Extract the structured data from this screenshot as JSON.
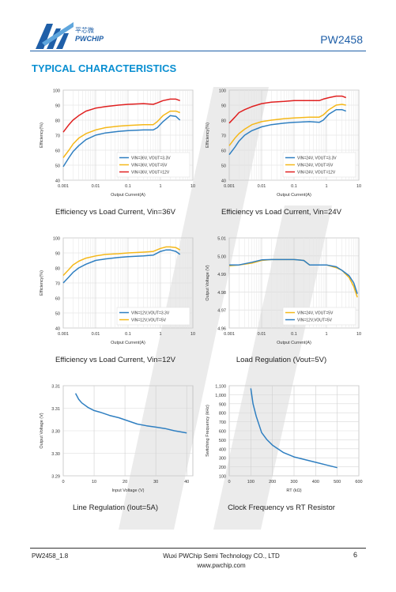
{
  "header": {
    "logo_cn": "平芯微",
    "logo_en": "PWCHIP",
    "part_number": "PW2458"
  },
  "section_title": "TYPICAL CHARACTERISTICS",
  "colors": {
    "blue": "#2f7fc1",
    "yellow": "#f5b819",
    "red": "#e02020",
    "accent": "#1f5fa8",
    "title": "#0a8fd1"
  },
  "charts": [
    {
      "id": "c1",
      "caption": "Efficiency vs Load Current, Vin=36V",
      "chart_data": {
        "type": "line",
        "xscale": "log",
        "xlim": [
          0.001,
          10
        ],
        "ylim": [
          40,
          100
        ],
        "xticks": [
          0.001,
          0.01,
          0.1,
          1,
          10
        ],
        "xtick_labels": [
          "0.001",
          "0.01",
          "0.1",
          "1",
          "10"
        ],
        "yticks": [
          40,
          50,
          60,
          70,
          80,
          90,
          100
        ],
        "ytick_labels": [
          "40",
          "50",
          "60",
          "70",
          "80",
          "90",
          "100"
        ],
        "xlabel": "Output Current(A)",
        "ylabel": "Efficiency(%)",
        "legend_position": "bottom-right",
        "series": [
          {
            "name": "VIN=36V, VOUT=3.3V",
            "color": "#2f7fc1",
            "x": [
              0.001,
              0.0015,
              0.002,
              0.003,
              0.005,
              0.01,
              0.02,
              0.05,
              0.1,
              0.3,
              0.6,
              0.8,
              1.2,
              2,
              3,
              4
            ],
            "y": [
              49,
              55,
              59,
              63,
              67,
              70,
              71.5,
              72.5,
              73,
              73.5,
              73.5,
              75,
              79,
              83,
              82.5,
              80
            ]
          },
          {
            "name": "VIN=36V, VOUT=5V",
            "color": "#f5b819",
            "x": [
              0.001,
              0.0015,
              0.002,
              0.003,
              0.005,
              0.01,
              0.02,
              0.05,
              0.1,
              0.3,
              0.6,
              0.8,
              1.2,
              2,
              3,
              4
            ],
            "y": [
              55,
              60,
              64,
              68,
              71,
              73.5,
              75,
              76,
              76.5,
              77,
              77,
              79,
              83,
              86,
              86,
              85
            ]
          },
          {
            "name": "VIN=36V, VOUT=12V",
            "color": "#e02020",
            "x": [
              0.001,
              0.0015,
              0.002,
              0.003,
              0.005,
              0.01,
              0.02,
              0.05,
              0.1,
              0.3,
              0.6,
              0.8,
              1.2,
              2,
              3,
              4
            ],
            "y": [
              72,
              77,
              80,
              83,
              86,
              88,
              89,
              90,
              90.5,
              91,
              90.5,
              91.5,
              93,
              94,
              94,
              93
            ]
          }
        ]
      }
    },
    {
      "id": "c2",
      "caption": "Efficiency vs Load Current, Vin=24V",
      "chart_data": {
        "type": "line",
        "xscale": "log",
        "xlim": [
          0.001,
          10
        ],
        "ylim": [
          40,
          100
        ],
        "xticks": [
          0.001,
          0.01,
          0.1,
          1,
          10
        ],
        "xtick_labels": [
          "0.001",
          "0.01",
          "0.1",
          "1",
          "10"
        ],
        "yticks": [
          40,
          50,
          60,
          70,
          80,
          90,
          100
        ],
        "ytick_labels": [
          "40",
          "50",
          "60",
          "70",
          "80",
          "90",
          "100"
        ],
        "xlabel": "Output Current(A)",
        "ylabel": "Efficiency(%)",
        "legend_position": "bottom-right",
        "series": [
          {
            "name": "VIN=24V, VOUT=3.3V",
            "color": "#2f7fc1",
            "x": [
              0.001,
              0.0015,
              0.002,
              0.003,
              0.005,
              0.01,
              0.02,
              0.05,
              0.1,
              0.3,
              0.6,
              0.8,
              1.2,
              2,
              3,
              4
            ],
            "y": [
              57,
              62,
              66,
              70,
              73,
              75.5,
              77,
              78,
              78.5,
              79,
              78.5,
              80,
              84,
              87,
              87,
              86
            ]
          },
          {
            "name": "VIN=24V, VOUT=5V",
            "color": "#f5b819",
            "x": [
              0.001,
              0.0015,
              0.002,
              0.003,
              0.005,
              0.01,
              0.02,
              0.05,
              0.1,
              0.3,
              0.6,
              0.8,
              1.2,
              2,
              3,
              4
            ],
            "y": [
              63,
              68,
              71,
              74,
              77,
              79,
              80,
              81,
              81.5,
              82,
              82,
              83.5,
              87,
              90,
              90.5,
              90
            ]
          },
          {
            "name": "VIN=24V, VOUT=12V",
            "color": "#e02020",
            "x": [
              0.001,
              0.0015,
              0.002,
              0.003,
              0.005,
              0.01,
              0.02,
              0.05,
              0.1,
              0.3,
              0.6,
              0.8,
              1.2,
              2,
              3,
              4
            ],
            "y": [
              78,
              82,
              85,
              87,
              89,
              91,
              92,
              92.5,
              93,
              93,
              93,
              94,
              95,
              96,
              96,
              95
            ]
          }
        ]
      }
    },
    {
      "id": "c3",
      "caption": "Efficiency vs Load Current, Vin=12V",
      "chart_data": {
        "type": "line",
        "xscale": "log",
        "xlim": [
          0.001,
          10
        ],
        "ylim": [
          40,
          100
        ],
        "xticks": [
          0.001,
          0.01,
          0.1,
          1,
          10
        ],
        "xtick_labels": [
          "0.001",
          "0.01",
          "0.1",
          "1",
          "10"
        ],
        "yticks": [
          40,
          50,
          60,
          70,
          80,
          90,
          100
        ],
        "ytick_labels": [
          "40",
          "50",
          "60",
          "70",
          "80",
          "90",
          "100"
        ],
        "xlabel": "Output Current(A)",
        "ylabel": "Efficiency(%)",
        "legend_position": "bottom-right",
        "series": [
          {
            "name": "VIN=12V,VOUT=3.3V",
            "color": "#2f7fc1",
            "x": [
              0.001,
              0.0015,
              0.002,
              0.003,
              0.005,
              0.01,
              0.02,
              0.05,
              0.1,
              0.3,
              0.6,
              1,
              1.5,
              2,
              3,
              4
            ],
            "y": [
              70,
              74,
              77,
              80,
              82.5,
              85,
              86,
              87,
              87.5,
              88,
              88.5,
              91,
              92,
              92,
              91,
              89
            ]
          },
          {
            "name": "VIN=12V,VOUT=5V",
            "color": "#f5b819",
            "x": [
              0.001,
              0.0015,
              0.002,
              0.003,
              0.005,
              0.01,
              0.02,
              0.05,
              0.1,
              0.3,
              0.6,
              1,
              1.5,
              2,
              3,
              4
            ],
            "y": [
              75,
              79,
              82,
              84.5,
              86.5,
              88,
              89,
              89.5,
              90,
              90.5,
              91,
              93,
              94,
              94,
              93.5,
              92
            ]
          }
        ]
      }
    },
    {
      "id": "c4",
      "caption": "Load Regulation (Vout=5V)",
      "chart_data": {
        "type": "line",
        "xscale": "log",
        "xlim": [
          0.001,
          10
        ],
        "ylim": [
          4.96,
          5.01
        ],
        "xticks": [
          0.001,
          0.01,
          0.1,
          1,
          10
        ],
        "xtick_labels": [
          "0.001",
          "0.01",
          "0.1",
          "1",
          "10"
        ],
        "yticks": [
          4.96,
          4.97,
          4.98,
          4.99,
          5.0,
          5.01
        ],
        "ytick_labels": [
          "4.96",
          "4.97",
          "4.98",
          "4.99",
          "5.00",
          "5.01"
        ],
        "xlabel": "Output Current(A)",
        "ylabel": "Output  Voltage (V)",
        "legend_position": "bottom-right",
        "series": [
          {
            "name": "VIN=24V, VOUT=5V",
            "color": "#f5b819",
            "x": [
              0.001,
              0.002,
              0.005,
              0.01,
              0.02,
              0.05,
              0.1,
              0.2,
              0.3,
              0.5,
              1,
              2,
              3,
              5,
              7,
              9
            ],
            "y": [
              4.9945,
              4.995,
              4.996,
              4.9975,
              4.998,
              4.998,
              4.998,
              4.9975,
              4.995,
              4.995,
              4.995,
              4.9935,
              4.992,
              4.988,
              4.983,
              4.977
            ]
          },
          {
            "name": "VIN=12V,VOUT=5V",
            "color": "#2f7fc1",
            "x": [
              0.001,
              0.002,
              0.005,
              0.01,
              0.02,
              0.05,
              0.1,
              0.2,
              0.3,
              0.5,
              1,
              2,
              3,
              5,
              7,
              9
            ],
            "y": [
              4.995,
              4.995,
              4.9965,
              4.9978,
              4.998,
              4.998,
              4.998,
              4.9975,
              4.995,
              4.995,
              4.995,
              4.994,
              4.992,
              4.989,
              4.985,
              4.979
            ]
          }
        ]
      }
    },
    {
      "id": "c5",
      "caption": "Line Regulation (Iout=5A)",
      "chart_data": {
        "type": "line",
        "xscale": "linear",
        "xlim": [
          0,
          42
        ],
        "ylim": [
          3.29,
          3.31
        ],
        "xticks": [
          0,
          10,
          20,
          30,
          40
        ],
        "xtick_labels": [
          "0",
          "10",
          "20",
          "30",
          "40"
        ],
        "yticks": [
          3.29,
          3.295,
          3.3,
          3.305,
          3.31
        ],
        "ytick_labels": [
          "3.29",
          "3.30",
          "3.30",
          "3.31",
          "3.31"
        ],
        "xlabel": "Input Voltage (V)",
        "ylabel": "Output Voltage (V)",
        "legend_position": "none",
        "series": [
          {
            "name": "",
            "color": "#2f7fc1",
            "x": [
              4,
              5,
              6,
              8,
              10,
              12,
              15,
              18,
              21,
              24,
              27,
              30,
              33,
              36,
              40
            ],
            "y": [
              3.3083,
              3.307,
              3.3062,
              3.3052,
              3.3045,
              3.3041,
              3.3034,
              3.3029,
              3.3022,
              3.3015,
              3.3011,
              3.3008,
              3.3005,
              3.3,
              3.2995
            ]
          }
        ]
      }
    },
    {
      "id": "c6",
      "caption": "Clock Frequency vs RT Resistor",
      "chart_data": {
        "type": "line",
        "xscale": "linear",
        "xlim": [
          0,
          600
        ],
        "ylim": [
          100,
          1100
        ],
        "xticks": [
          0,
          100,
          200,
          300,
          400,
          500,
          600
        ],
        "xtick_labels": [
          "0",
          "100",
          "200",
          "300",
          "400",
          "500",
          "600"
        ],
        "yticks": [
          100,
          200,
          300,
          400,
          500,
          600,
          700,
          800,
          900,
          1000,
          1100
        ],
        "ytick_labels": [
          "100",
          "200",
          "300",
          "400",
          "500",
          "600",
          "700",
          "800",
          "900",
          "1,000",
          "1,100"
        ],
        "xlabel": "RT (kΩ)",
        "ylabel": "Switching Frequency (kHz)",
        "legend_position": "none",
        "series": [
          {
            "name": "",
            "color": "#2f7fc1",
            "x": [
              100,
              110,
              125,
              150,
              175,
              200,
              250,
              300,
              350,
              400,
              450,
              500
            ],
            "y": [
              1070,
              900,
              760,
              580,
              500,
              440,
              360,
              310,
              280,
              250,
              220,
              190
            ]
          }
        ]
      }
    }
  ],
  "footer": {
    "doc_id": "PW2458_1.8",
    "company": "Wuxi PWChip Semi Technology CO., LTD",
    "website": "www.pwchip.com",
    "page": "6"
  }
}
